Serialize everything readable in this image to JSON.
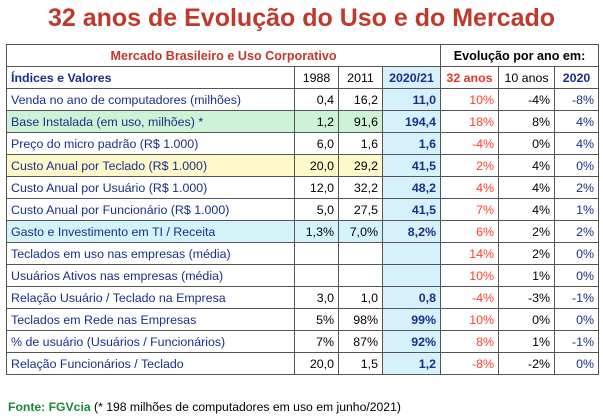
{
  "title": "32 anos de Evolução do Uso e do Mercado",
  "header": {
    "market": "Mercado Brasileiro e Uso Corporativo",
    "evolution": "Evolução por ano em:"
  },
  "columns": {
    "index": "Índices e Valores",
    "y1988": "1988",
    "y2011": "2011",
    "y2020": "2020/21",
    "e32": "32 anos",
    "e10": "10 anos",
    "e2020": "2020"
  },
  "rows": [
    {
      "label": "Venda no ano de computadores (milhões)",
      "y1988": "0,4",
      "y2011": "16,2",
      "y2020": "11,0",
      "e32": "10%",
      "e10": "-4%",
      "e2020": "-8%",
      "bg": "none"
    },
    {
      "label": "Base Instalada (em uso, milhões) *",
      "y1988": "1,2",
      "y2011": "91,6",
      "y2020": "194,4",
      "e32": "18%",
      "e10": "8%",
      "e2020": "4%",
      "bg": "green"
    },
    {
      "label": "Preço do micro padrão (R$ 1.000)",
      "y1988": "6,0",
      "y2011": "1,6",
      "y2020": "1,6",
      "e32": "-4%",
      "e10": "0%",
      "e2020": "4%",
      "bg": "none"
    },
    {
      "label": "Custo Anual por Teclado (R$ 1.000)",
      "y1988": "20,0",
      "y2011": "29,2",
      "y2020": "41,5",
      "e32": "2%",
      "e10": "4%",
      "e2020": "0%",
      "bg": "yellow"
    },
    {
      "label": "Custo Anual por Usuário (R$ 1.000)",
      "y1988": "12,0",
      "y2011": "32,2",
      "y2020": "48,2",
      "e32": "4%",
      "e10": "4%",
      "e2020": "2%",
      "bg": "none"
    },
    {
      "label": "Custo Anual por Funcionário (R$ 1.000)",
      "y1988": "5,0",
      "y2011": "27,5",
      "y2020": "41,5",
      "e32": "7%",
      "e10": "4%",
      "e2020": "1%",
      "bg": "none"
    },
    {
      "label": "Gasto e Investimento em TI / Receita",
      "y1988": "1,3%",
      "y2011": "7,0%",
      "y2020": "8,2%",
      "e32": "6%",
      "e10": "2%",
      "e2020": "2%",
      "bg": "cyan"
    },
    {
      "label": "Teclados em uso nas empresas (média)",
      "y1988": "",
      "y2011": "",
      "y2020": "",
      "e32": "14%",
      "e10": "2%",
      "e2020": "0%",
      "bg": "none"
    },
    {
      "label": "Usuários Ativos nas empresas (média)",
      "y1988": "",
      "y2011": "",
      "y2020": "",
      "e32": "10%",
      "e10": "1%",
      "e2020": "0%",
      "bg": "none"
    },
    {
      "label": "Relação Usuário / Teclado na Empresa",
      "y1988": "3,0",
      "y2011": "1,0",
      "y2020": "0,8",
      "e32": "-4%",
      "e10": "-3%",
      "e2020": "-1%",
      "bg": "none"
    },
    {
      "label": "Teclados em Rede nas Empresas",
      "y1988": "5%",
      "y2011": "98%",
      "y2020": "99%",
      "e32": "10%",
      "e10": "0%",
      "e2020": "0%",
      "bg": "none"
    },
    {
      "label": "% de usuário (Usuários / Funcionários)",
      "y1988": "7%",
      "y2011": "87%",
      "y2020": "92%",
      "e32": "8%",
      "e10": "1%",
      "e2020": "-1%",
      "bg": "none"
    },
    {
      "label": "Relação Funcionários / Teclado",
      "y1988": "20,0",
      "y2011": "1,5",
      "y2020": "1,2",
      "e32": "-8%",
      "e10": "-2%",
      "e2020": "0%",
      "bg": "none"
    }
  ],
  "footer": {
    "source": "Fonte: FGVcia",
    "note": " (* 198 milhões de computadores em uso em junho/2021)"
  }
}
